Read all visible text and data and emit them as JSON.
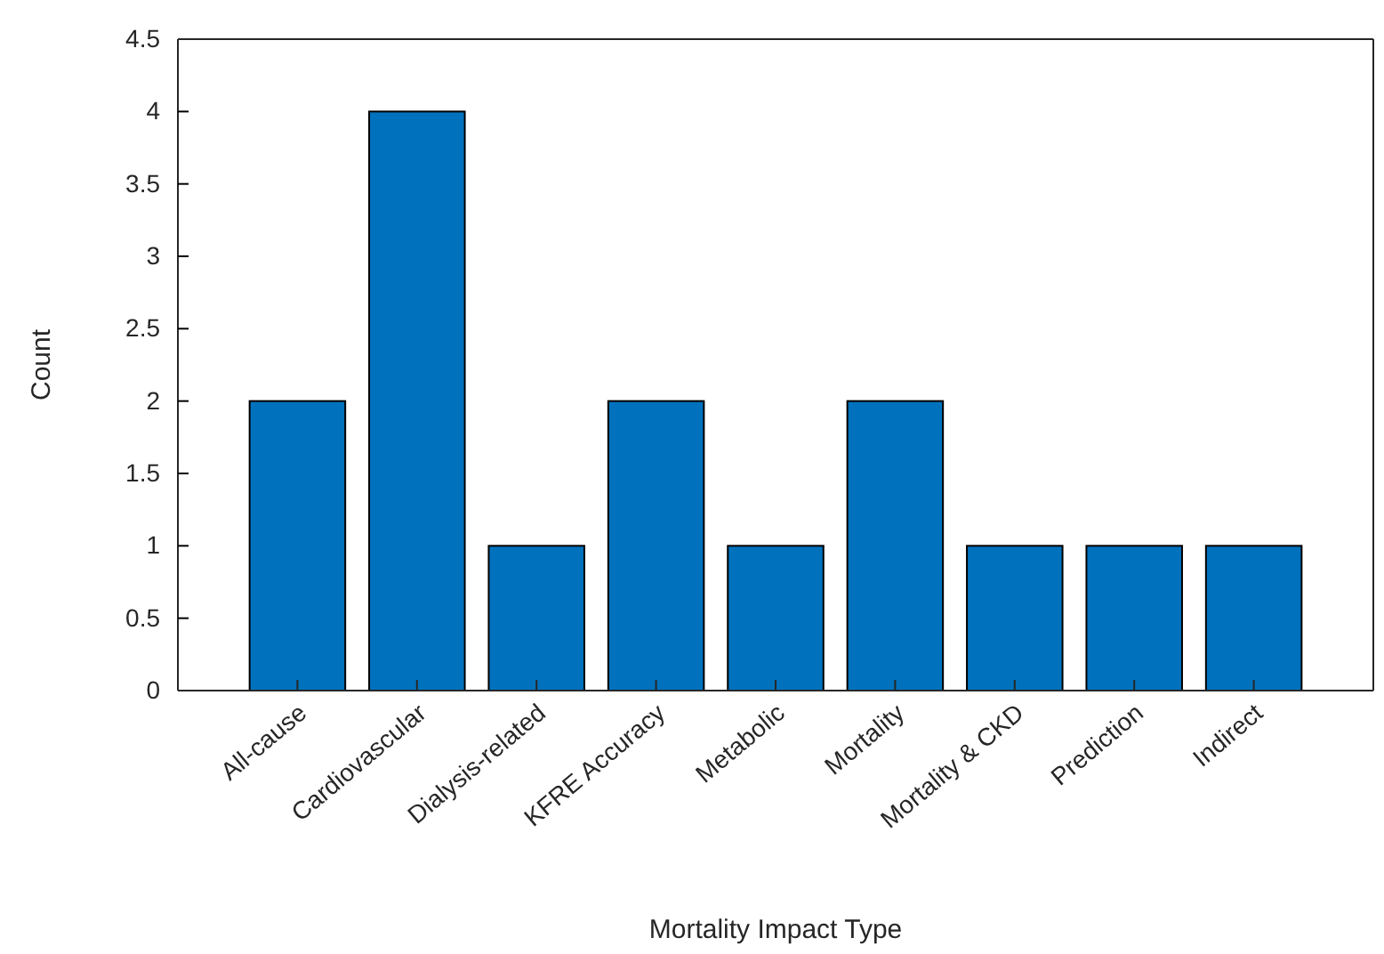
{
  "chart_data": {
    "type": "bar",
    "xlabel": "Mortality Impact Type",
    "ylabel": "Count",
    "categories": [
      "All-cause",
      "Cardiovascular",
      "Dialysis-related",
      "KFRE Accuracy",
      "Metabolic",
      "Mortality",
      "Mortality & CKD",
      "Prediction",
      "Indirect"
    ],
    "values": [
      2,
      4,
      1,
      2,
      1,
      2,
      1,
      1,
      1
    ],
    "color": "#0072bd",
    "ylim": [
      0,
      4.5
    ],
    "yticks": [
      0,
      0.5,
      1,
      1.5,
      2,
      2.5,
      3,
      3.5,
      4,
      4.5
    ],
    "grid": false
  }
}
